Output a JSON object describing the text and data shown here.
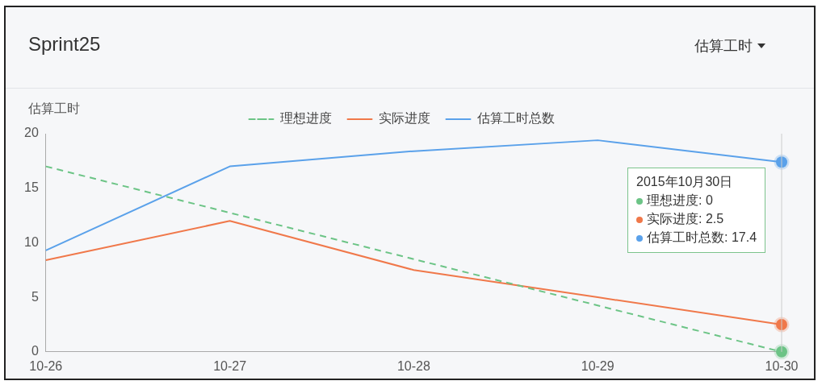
{
  "chart_data": {
    "type": "line",
    "title": "Sprint25",
    "subtitle": "估算工时",
    "ylabel": "估算工时",
    "categories": [
      "10-26",
      "10-27",
      "10-28",
      "10-29",
      "10-30"
    ],
    "series": [
      {
        "name": "理想进度",
        "color": "#6cc486",
        "values": [
          17,
          12.75,
          8.5,
          4.25,
          0
        ],
        "line_style": "dashed"
      },
      {
        "name": "实际进度",
        "color": "#f0784a",
        "values": [
          8.4,
          12,
          7.5,
          5,
          2.5
        ]
      },
      {
        "name": "估算工时总数",
        "color": "#5aa1ea",
        "values": [
          9.3,
          17,
          18.4,
          19.4,
          17.4
        ]
      }
    ],
    "ylim": [
      0,
      20
    ],
    "yticks": [
      0,
      5,
      10,
      15,
      20
    ],
    "grid": false,
    "legend": "top",
    "marker": "none",
    "line_style": "solid",
    "annotations": [
      "2015年10月30日",
      "理想进度: 0",
      "实际进度: 2.5",
      "估算工时总数: 17.4"
    ]
  }
}
